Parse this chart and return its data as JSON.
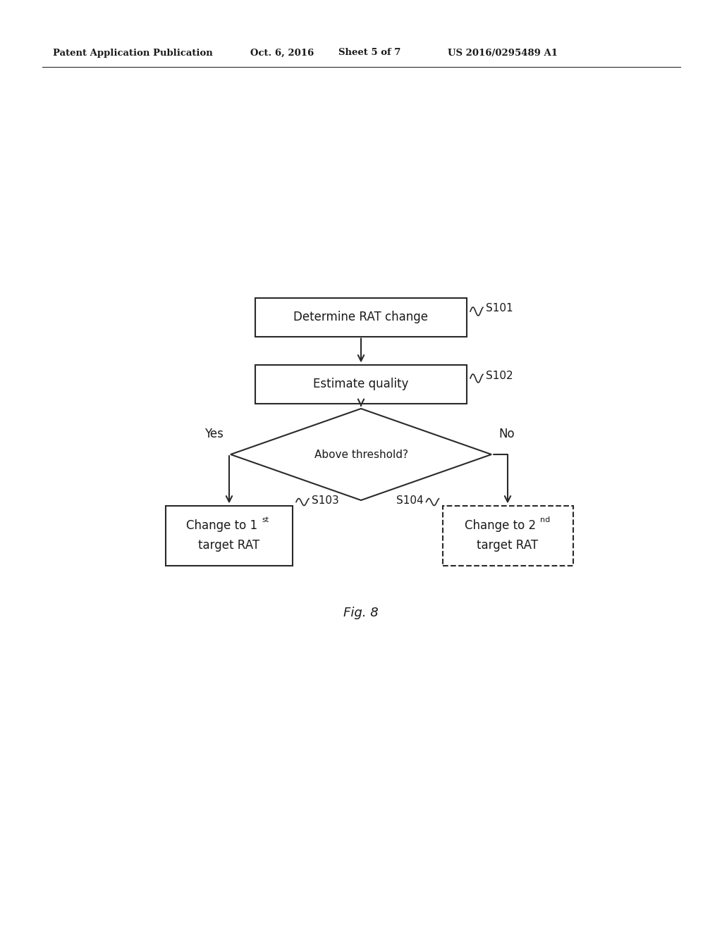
{
  "bg_color": "#ffffff",
  "text_color": "#1a1a1a",
  "line_color": "#2a2a2a",
  "header_text": "Patent Application Publication",
  "header_date": "Oct. 6, 2016",
  "header_sheet": "Sheet 5 of 7",
  "header_patent": "US 2016/0295489 A1",
  "fig_label": "Fig. 8",
  "box1_text": "Determine RAT change",
  "box1_label": "S101",
  "box2_text": "Estimate quality",
  "box2_label": "S102",
  "diamond_text": "Above threshold?",
  "yes_label": "Yes",
  "no_label": "No",
  "box3_label": "S103",
  "box4_label": "S104",
  "header_fontsize": 9.5,
  "body_fontsize": 12,
  "label_fontsize": 11,
  "super_fontsize": 8
}
